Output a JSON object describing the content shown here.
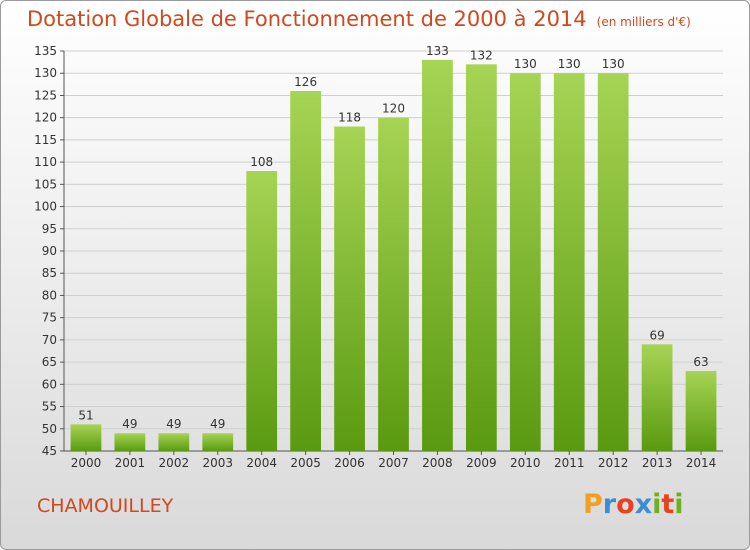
{
  "title": "Dotation Globale de Fonctionnement de 2000 à 2014",
  "unit": "(en milliers d'€)",
  "commune": "CHAMOUILLEY",
  "brand": {
    "letters": [
      "P",
      "r",
      "o",
      "x",
      "i",
      "t",
      "i"
    ],
    "colors": [
      "#f0a020",
      "#3a8fd0",
      "#e84020",
      "#3a8fd0",
      "#70b020",
      "#e84020",
      "#70b020"
    ]
  },
  "colors": {
    "bar_top": "#a6d454",
    "bar_bottom": "#5a9a10",
    "title": "#d0481d"
  },
  "chart_data": {
    "type": "bar",
    "categories": [
      "2000",
      "2001",
      "2002",
      "2003",
      "2004",
      "2005",
      "2006",
      "2007",
      "2008",
      "2009",
      "2010",
      "2011",
      "2012",
      "2013",
      "2014"
    ],
    "values": [
      51,
      49,
      49,
      49,
      108,
      126,
      118,
      120,
      133,
      132,
      130,
      130,
      130,
      69,
      63
    ],
    "ylim": [
      45,
      135
    ],
    "yticks": [
      45,
      50,
      55,
      60,
      65,
      70,
      75,
      80,
      85,
      90,
      95,
      100,
      105,
      110,
      115,
      120,
      125,
      130,
      135
    ],
    "grid": true
  }
}
